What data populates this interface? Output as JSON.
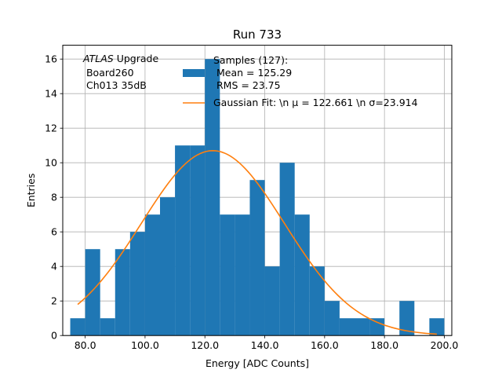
{
  "chart_data": {
    "type": "bar",
    "title": "Run 733",
    "xlabel": "Energy [ADC Counts]",
    "ylabel": "Entries",
    "xlim": [
      72.5,
      202.5
    ],
    "ylim": [
      0,
      16.8
    ],
    "grid": true,
    "bin_edges": [
      75,
      80,
      85,
      90,
      95,
      100,
      105,
      110,
      115,
      120,
      125,
      130,
      135,
      140,
      145,
      150,
      155,
      160,
      165,
      170,
      175,
      180,
      185,
      190,
      195,
      200
    ],
    "counts": [
      1,
      5,
      1,
      5,
      6,
      7,
      8,
      11,
      11,
      16,
      7,
      7,
      9,
      4,
      10,
      7,
      4,
      2,
      1,
      1,
      1,
      0,
      2,
      0,
      1
    ],
    "x_ticks": [
      80,
      100,
      120,
      140,
      160,
      180,
      200
    ],
    "x_tick_labels": [
      "80.0",
      "100.0",
      "120.0",
      "140.0",
      "160.0",
      "180.0",
      "200.0"
    ],
    "y_ticks": [
      0,
      2,
      4,
      6,
      8,
      10,
      12,
      14,
      16
    ],
    "y_tick_labels": [
      "0",
      "2",
      "4",
      "6",
      "8",
      "10",
      "12",
      "14",
      "16"
    ],
    "bar_color": "#1f77b4",
    "fit": {
      "type": "gaussian",
      "mu": 122.661,
      "sigma": 23.914,
      "amplitude": 10.7,
      "x_range": [
        77.5,
        197.5
      ],
      "color": "#ff7f0e"
    },
    "legend_position": "top-right",
    "legend": [
      {
        "kind": "bar",
        "lines": [
          "Samples (127):",
          " Mean = 125.29",
          " RMS = 23.75"
        ]
      },
      {
        "kind": "line",
        "lines": [
          "Gaussian Fit: \\n μ = 122.661 \\n σ=23.914"
        ]
      }
    ],
    "annotation": {
      "italic": "ATLAS",
      "rest": " Upgrade",
      "lines": [
        " Board260",
        " Ch013 35dB"
      ]
    }
  }
}
